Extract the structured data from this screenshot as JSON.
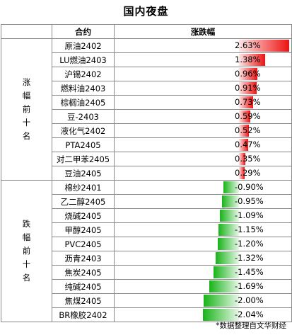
{
  "title": "国内夜盘",
  "table": {
    "header": {
      "group": "",
      "contract": "合约",
      "change": "涨跌幅"
    },
    "groups": [
      {
        "name": "涨\n幅\n前\n十\n名",
        "direction": "up"
      },
      {
        "name": "跌\n幅\n前\n十\n名",
        "direction": "down"
      }
    ]
  },
  "chart_data": {
    "type": "table",
    "title": "国内夜盘",
    "columns": [
      "合约",
      "涨跌幅"
    ],
    "groups": [
      {
        "name": "涨幅前十名",
        "rows": [
          {
            "contract": "原油2402",
            "change": 2.63,
            "label": "2.63%"
          },
          {
            "contract": "LU燃油2403",
            "change": 1.38,
            "label": "1.38%"
          },
          {
            "contract": "沪锡2402",
            "change": 0.96,
            "label": "0.96%"
          },
          {
            "contract": "燃料油2403",
            "change": 0.91,
            "label": "0.91%"
          },
          {
            "contract": "棕榈油2405",
            "change": 0.73,
            "label": "0.73%"
          },
          {
            "contract": "豆-2403",
            "change": 0.59,
            "label": "0.59%"
          },
          {
            "contract": "液化气2402",
            "change": 0.52,
            "label": "0.52%"
          },
          {
            "contract": "PTA2405",
            "change": 0.47,
            "label": "0.47%"
          },
          {
            "contract": "对二甲苯2405",
            "change": 0.35,
            "label": "0.35%"
          },
          {
            "contract": "豆油2405",
            "change": 0.29,
            "label": "0.29%"
          }
        ]
      },
      {
        "name": "跌幅前十名",
        "rows": [
          {
            "contract": "棉纱2401",
            "change": -0.9,
            "label": "-0.90%"
          },
          {
            "contract": "乙二醇2405",
            "change": -0.95,
            "label": "-0.95%"
          },
          {
            "contract": "烧碱2405",
            "change": -1.09,
            "label": "-1.09%"
          },
          {
            "contract": "甲醇2405",
            "change": -1.15,
            "label": "-1.15%"
          },
          {
            "contract": "PVC2405",
            "change": -1.2,
            "label": "-1.20%"
          },
          {
            "contract": "沥青2403",
            "change": -1.32,
            "label": "-1.32%"
          },
          {
            "contract": "焦炭2405",
            "change": -1.45,
            "label": "-1.45%"
          },
          {
            "contract": "纯碱2405",
            "change": -1.69,
            "label": "-1.69%"
          },
          {
            "contract": "焦煤2405",
            "change": -2.0,
            "label": "-2.00%"
          },
          {
            "contract": "BR橡胶2402",
            "change": -2.04,
            "label": "-2.04%"
          }
        ]
      }
    ],
    "colors": {
      "up": "#ee1111",
      "down": "#18b418"
    }
  },
  "footer": "*数据整理自文华财经"
}
